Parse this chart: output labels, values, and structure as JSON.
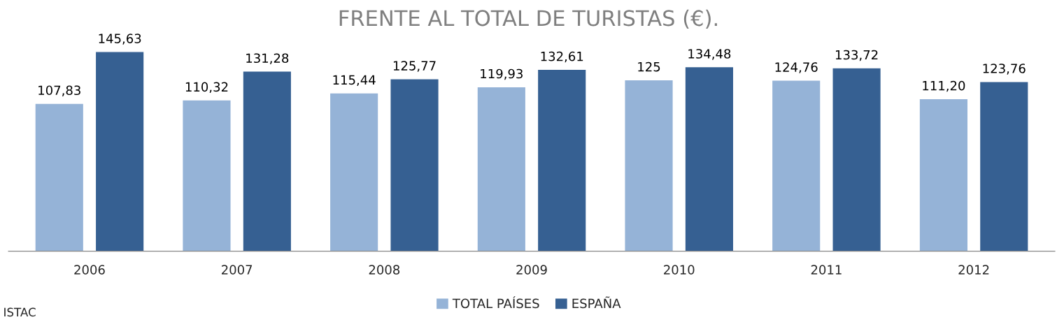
{
  "chart_data": {
    "type": "bar",
    "title": "FRENTE AL TOTAL DE TURISTAS (€).",
    "categories": [
      "2006",
      "2007",
      "2008",
      "2009",
      "2010",
      "2011",
      "2012"
    ],
    "series": [
      {
        "name": "TOTAL PAÍSES",
        "color": "#95b3d7",
        "values": [
          107.83,
          110.32,
          115.44,
          119.93,
          125,
          124.76,
          111.2
        ],
        "value_labels": [
          "107,83",
          "110,32",
          "115,44",
          "119,93",
          "125",
          "124,76",
          "111,20"
        ]
      },
      {
        "name": "ESPAÑA",
        "color": "#366092",
        "values": [
          145.63,
          131.28,
          125.77,
          132.61,
          134.48,
          133.72,
          123.76
        ],
        "value_labels": [
          "145,63",
          "131,28",
          "125,77",
          "132,61",
          "134,48",
          "133,72",
          "123,76"
        ]
      }
    ],
    "legend": "bottom",
    "grid": false,
    "annotations": [
      "ISTAC"
    ]
  }
}
